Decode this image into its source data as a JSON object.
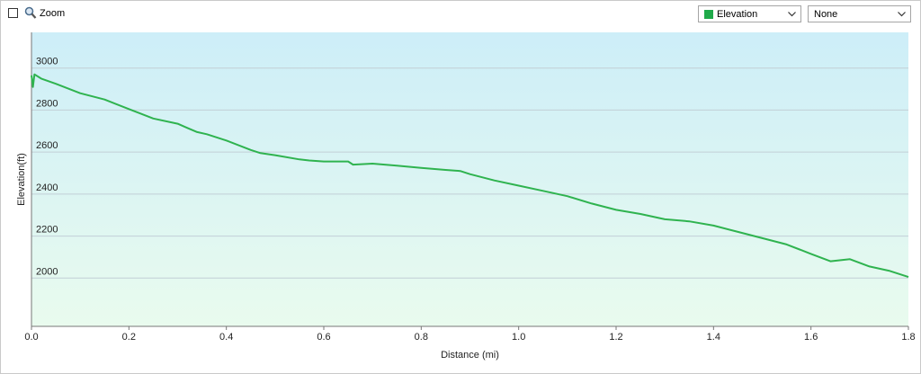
{
  "toolbar": {
    "zoom_label": "Zoom",
    "zoom_checked": false,
    "primary_select": {
      "value": "Elevation",
      "swatch_color": "#1faa4a"
    },
    "secondary_select": {
      "value": "None"
    }
  },
  "colors": {
    "line": "#2fb34f",
    "plot_top": "#cdeef8",
    "plot_bottom": "#e9fbee",
    "gridline": "#c2cfd6",
    "axis": "#777777"
  },
  "chart_data": {
    "type": "area",
    "xlabel": "Distance  (mi)",
    "ylabel": "Elevation(ft)",
    "xlim": [
      0,
      1.8
    ],
    "ylim": [
      1770,
      3170
    ],
    "xticks": [
      "0.0",
      "0.2",
      "0.4",
      "0.6",
      "0.8",
      "1.0",
      "1.2",
      "1.4",
      "1.6",
      "1.8"
    ],
    "xtick_values": [
      0,
      0.2,
      0.4,
      0.6,
      0.8,
      1.0,
      1.2,
      1.4,
      1.6,
      1.8
    ],
    "yticks": [
      "2000",
      "2200",
      "2400",
      "2600",
      "2800",
      "3000"
    ],
    "ytick_values": [
      2000,
      2200,
      2400,
      2600,
      2800,
      3000
    ],
    "grid": true,
    "legend": "none",
    "series": [
      {
        "name": "Elevation",
        "x": [
          0,
          0.003,
          0.006,
          0.02,
          0.05,
          0.1,
          0.15,
          0.2,
          0.25,
          0.3,
          0.32,
          0.34,
          0.36,
          0.4,
          0.45,
          0.47,
          0.5,
          0.55,
          0.57,
          0.6,
          0.65,
          0.66,
          0.7,
          0.75,
          0.8,
          0.85,
          0.88,
          0.9,
          0.95,
          1.0,
          1.05,
          1.1,
          1.15,
          1.2,
          1.25,
          1.3,
          1.35,
          1.4,
          1.45,
          1.5,
          1.55,
          1.6,
          1.64,
          1.68,
          1.72,
          1.76,
          1.8
        ],
        "y": [
          2965,
          2910,
          2970,
          2950,
          2925,
          2880,
          2850,
          2805,
          2760,
          2735,
          2715,
          2695,
          2685,
          2655,
          2610,
          2595,
          2585,
          2565,
          2560,
          2555,
          2555,
          2540,
          2545,
          2535,
          2525,
          2515,
          2510,
          2495,
          2465,
          2440,
          2415,
          2390,
          2355,
          2325,
          2305,
          2280,
          2270,
          2250,
          2220,
          2190,
          2160,
          2115,
          2080,
          2090,
          2055,
          2035,
          2005
        ]
      }
    ]
  }
}
